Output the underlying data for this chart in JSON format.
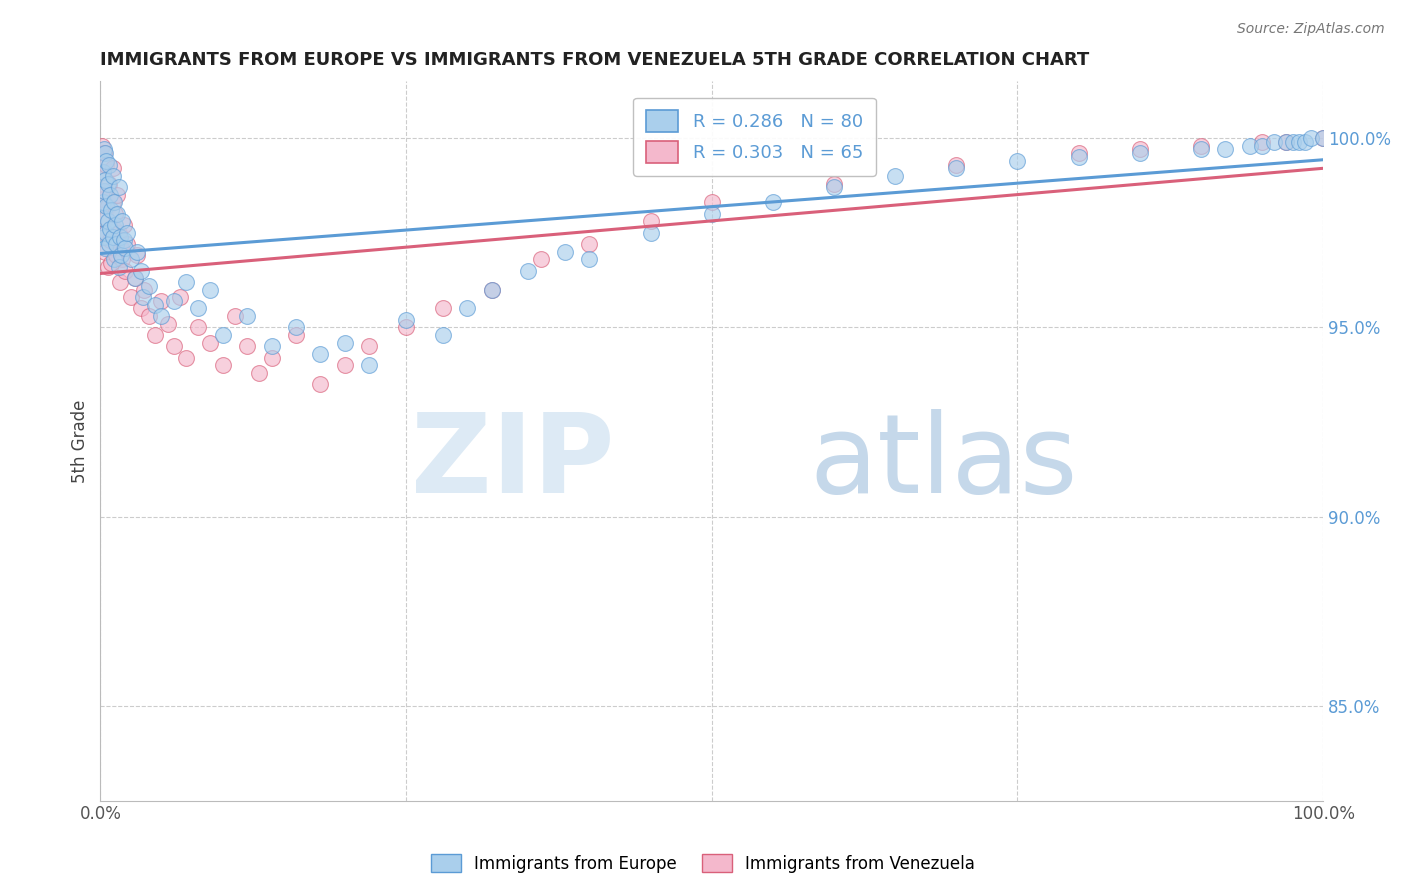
{
  "title": "IMMIGRANTS FROM EUROPE VS IMMIGRANTS FROM VENEZUELA 5TH GRADE CORRELATION CHART",
  "source": "Source: ZipAtlas.com",
  "ylabel": "5th Grade",
  "xlim": [
    0.0,
    1.0
  ],
  "ylim": [
    0.825,
    1.015
  ],
  "ytick_labels": [
    "85.0%",
    "90.0%",
    "95.0%",
    "100.0%"
  ],
  "yticks": [
    0.85,
    0.9,
    0.95,
    1.0
  ],
  "legend_europe_R": "0.286",
  "legend_europe_N": "80",
  "legend_venezuela_R": "0.303",
  "legend_venezuela_N": "65",
  "europe_color": "#aacfec",
  "venezuela_color": "#f4b8cc",
  "europe_line_color": "#5b9bd5",
  "venezuela_line_color": "#d9607a",
  "background_color": "#ffffff",
  "grid_color": "#cccccc",
  "europe_scatter_x": [
    0.001,
    0.002,
    0.002,
    0.003,
    0.003,
    0.003,
    0.004,
    0.004,
    0.004,
    0.005,
    0.005,
    0.005,
    0.006,
    0.006,
    0.007,
    0.007,
    0.008,
    0.008,
    0.009,
    0.01,
    0.01,
    0.011,
    0.011,
    0.012,
    0.013,
    0.014,
    0.015,
    0.015,
    0.016,
    0.017,
    0.018,
    0.019,
    0.02,
    0.022,
    0.025,
    0.028,
    0.03,
    0.033,
    0.035,
    0.04,
    0.045,
    0.05,
    0.06,
    0.07,
    0.08,
    0.09,
    0.1,
    0.12,
    0.14,
    0.16,
    0.18,
    0.2,
    0.22,
    0.25,
    0.28,
    0.3,
    0.32,
    0.35,
    0.38,
    0.4,
    0.45,
    0.5,
    0.55,
    0.6,
    0.65,
    0.7,
    0.75,
    0.8,
    0.85,
    0.9,
    0.92,
    0.94,
    0.95,
    0.96,
    0.97,
    0.975,
    0.98,
    0.985,
    0.99,
    1.0
  ],
  "europe_scatter_y": [
    0.979,
    0.983,
    0.991,
    0.974,
    0.986,
    0.997,
    0.971,
    0.989,
    0.996,
    0.975,
    0.982,
    0.994,
    0.978,
    0.988,
    0.972,
    0.993,
    0.976,
    0.985,
    0.981,
    0.974,
    0.99,
    0.968,
    0.983,
    0.977,
    0.972,
    0.98,
    0.966,
    0.987,
    0.974,
    0.969,
    0.978,
    0.973,
    0.971,
    0.975,
    0.968,
    0.963,
    0.97,
    0.965,
    0.958,
    0.961,
    0.956,
    0.953,
    0.957,
    0.962,
    0.955,
    0.96,
    0.948,
    0.953,
    0.945,
    0.95,
    0.943,
    0.946,
    0.94,
    0.952,
    0.948,
    0.955,
    0.96,
    0.965,
    0.97,
    0.968,
    0.975,
    0.98,
    0.983,
    0.987,
    0.99,
    0.992,
    0.994,
    0.995,
    0.996,
    0.997,
    0.997,
    0.998,
    0.998,
    0.999,
    0.999,
    0.999,
    0.999,
    0.999,
    1.0,
    1.0
  ],
  "venezuela_scatter_x": [
    0.001,
    0.002,
    0.002,
    0.003,
    0.003,
    0.004,
    0.004,
    0.005,
    0.005,
    0.006,
    0.006,
    0.007,
    0.008,
    0.009,
    0.01,
    0.01,
    0.011,
    0.012,
    0.013,
    0.014,
    0.015,
    0.016,
    0.017,
    0.018,
    0.019,
    0.02,
    0.022,
    0.025,
    0.028,
    0.03,
    0.033,
    0.036,
    0.04,
    0.045,
    0.05,
    0.055,
    0.06,
    0.065,
    0.07,
    0.08,
    0.09,
    0.1,
    0.11,
    0.12,
    0.13,
    0.14,
    0.16,
    0.18,
    0.2,
    0.22,
    0.25,
    0.28,
    0.32,
    0.36,
    0.4,
    0.45,
    0.5,
    0.6,
    0.7,
    0.8,
    0.85,
    0.9,
    0.95,
    0.97,
    1.0
  ],
  "venezuela_scatter_y": [
    0.998,
    0.984,
    0.991,
    0.975,
    0.996,
    0.97,
    0.986,
    0.979,
    0.993,
    0.966,
    0.982,
    0.988,
    0.973,
    0.967,
    0.992,
    0.983,
    0.976,
    0.98,
    0.969,
    0.985,
    0.975,
    0.962,
    0.971,
    0.968,
    0.977,
    0.965,
    0.972,
    0.958,
    0.963,
    0.969,
    0.955,
    0.96,
    0.953,
    0.948,
    0.957,
    0.951,
    0.945,
    0.958,
    0.942,
    0.95,
    0.946,
    0.94,
    0.953,
    0.945,
    0.938,
    0.942,
    0.948,
    0.935,
    0.94,
    0.945,
    0.95,
    0.955,
    0.96,
    0.968,
    0.972,
    0.978,
    0.983,
    0.988,
    0.993,
    0.996,
    0.997,
    0.998,
    0.999,
    0.999,
    1.0
  ]
}
